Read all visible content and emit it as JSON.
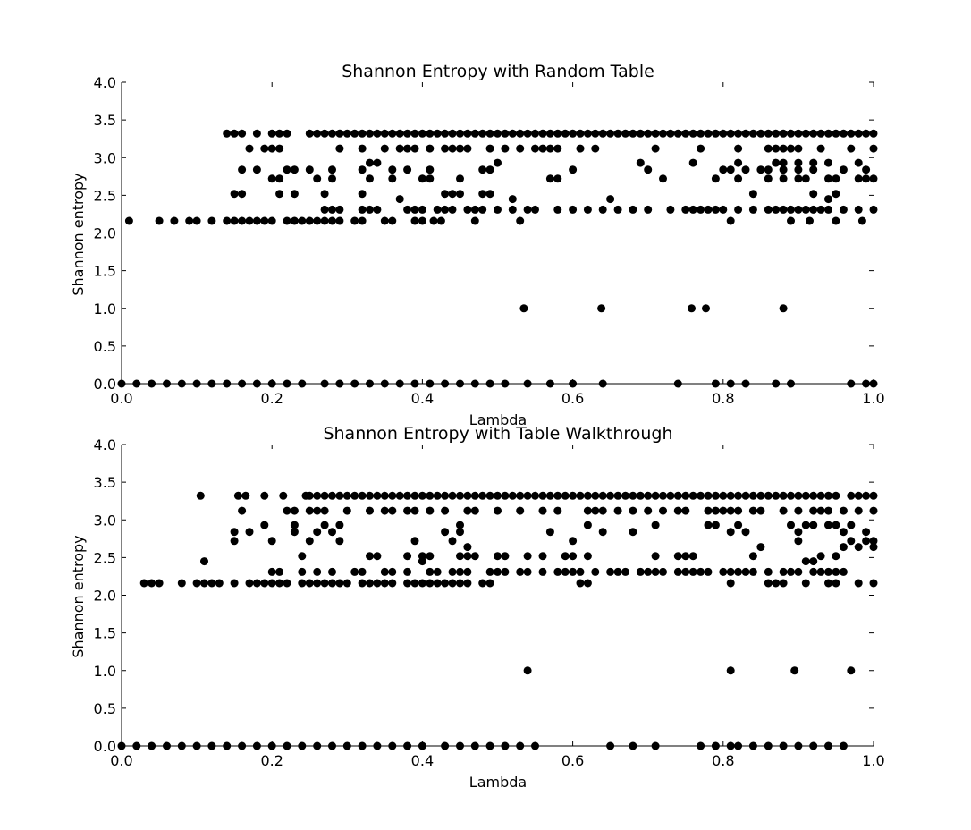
{
  "chart_data": [
    {
      "type": "scatter",
      "title": "Shannon Entropy with Random Table",
      "xlabel": "Lambda",
      "ylabel": "Shannon entropy",
      "xlim": [
        0.0,
        1.0
      ],
      "ylim": [
        0.0,
        4.0
      ],
      "xticks": [
        "0.0",
        "0.2",
        "0.4",
        "0.6",
        "0.8",
        "1.0"
      ],
      "yticks": [
        "0.0",
        "0.5",
        "1.0",
        "1.5",
        "2.0",
        "2.5",
        "3.0",
        "3.5",
        "4.0"
      ],
      "grid": false,
      "marker_color": "#000000",
      "series": [
        {
          "points": [
            {
              "y": 0.0,
              "x": [
                0.0,
                0.02,
                0.04,
                0.06,
                0.08,
                0.1,
                0.12,
                0.14,
                0.16,
                0.18,
                0.2,
                0.22,
                0.24,
                0.27,
                0.29,
                0.31,
                0.33,
                0.35,
                0.37,
                0.39,
                0.41,
                0.43,
                0.45,
                0.47,
                0.49,
                0.51,
                0.54,
                0.57,
                0.6,
                0.64,
                0.74,
                0.79,
                0.81,
                0.83,
                0.87,
                0.89,
                0.97,
                0.99,
                1.0
              ]
            },
            {
              "y": 1.0,
              "x": [
                0.535,
                0.638,
                0.758,
                0.777,
                0.88
              ]
            },
            {
              "y": 2.16,
              "x": [
                0.01,
                0.05,
                0.07,
                0.09,
                0.1,
                0.12,
                0.14,
                0.15,
                0.16,
                0.17,
                0.18,
                0.19,
                0.2,
                0.22,
                0.23,
                0.24,
                0.25,
                0.26,
                0.27,
                0.28,
                0.29,
                0.31,
                0.32,
                0.35,
                0.36,
                0.39,
                0.4,
                0.415,
                0.425,
                0.47,
                0.53,
                0.81,
                0.89,
                0.915,
                0.95,
                0.985
              ]
            },
            {
              "y": 2.31,
              "x": [
                0.27,
                0.28,
                0.29,
                0.32,
                0.33,
                0.34,
                0.38,
                0.39,
                0.4,
                0.42,
                0.43,
                0.44,
                0.46,
                0.47,
                0.48,
                0.5,
                0.52,
                0.54,
                0.55,
                0.58,
                0.6,
                0.62,
                0.64,
                0.66,
                0.68,
                0.7,
                0.73,
                0.75,
                0.76,
                0.77,
                0.78,
                0.79,
                0.8,
                0.82,
                0.84,
                0.86,
                0.87,
                0.88,
                0.89,
                0.9,
                0.91,
                0.92,
                0.93,
                0.94,
                0.96,
                0.98,
                1.0
              ]
            },
            {
              "y": 2.45,
              "x": [
                0.37,
                0.52,
                0.65,
                0.94
              ]
            },
            {
              "y": 2.52,
              "x": [
                0.15,
                0.16,
                0.21,
                0.23,
                0.27,
                0.32,
                0.43,
                0.44,
                0.45,
                0.48,
                0.49,
                0.84,
                0.92,
                0.95
              ]
            },
            {
              "y": 2.72,
              "x": [
                0.2,
                0.21,
                0.26,
                0.28,
                0.33,
                0.36,
                0.4,
                0.41,
                0.45,
                0.57,
                0.58,
                0.72,
                0.79,
                0.82,
                0.86,
                0.88,
                0.9,
                0.91,
                0.94,
                0.95,
                0.98,
                0.99,
                1.0
              ]
            },
            {
              "y": 2.84,
              "x": [
                0.16,
                0.18,
                0.22,
                0.23,
                0.25,
                0.28,
                0.32,
                0.36,
                0.38,
                0.41,
                0.48,
                0.49,
                0.6,
                0.7,
                0.8,
                0.81,
                0.83,
                0.85,
                0.86,
                0.88,
                0.9,
                0.92,
                0.96,
                0.99
              ]
            },
            {
              "y": 2.93,
              "x": [
                0.33,
                0.34,
                0.5,
                0.69,
                0.76,
                0.82,
                0.87,
                0.88,
                0.9,
                0.92,
                0.94,
                0.98
              ]
            },
            {
              "y": 3.12,
              "x": [
                0.17,
                0.19,
                0.2,
                0.21,
                0.29,
                0.32,
                0.35,
                0.37,
                0.38,
                0.39,
                0.41,
                0.43,
                0.44,
                0.45,
                0.46,
                0.49,
                0.51,
                0.53,
                0.55,
                0.56,
                0.57,
                0.58,
                0.61,
                0.63,
                0.71,
                0.77,
                0.82,
                0.86,
                0.87,
                0.88,
                0.89,
                0.9,
                0.93,
                0.97,
                1.0
              ]
            },
            {
              "y": 3.32,
              "x": [
                0.14,
                0.15,
                0.16,
                0.18,
                0.2,
                0.21,
                0.22,
                0.25,
                0.26,
                0.27,
                0.28,
                0.29,
                0.3,
                0.31,
                0.32,
                0.33,
                0.34,
                0.35,
                0.36,
                0.37,
                0.38,
                0.39,
                0.4,
                0.41,
                0.42,
                0.43,
                0.44,
                0.45,
                0.46,
                0.47,
                0.48,
                0.49,
                0.5,
                0.51,
                0.52,
                0.53,
                0.54,
                0.55,
                0.56,
                0.57,
                0.58,
                0.59,
                0.6,
                0.61,
                0.62,
                0.63,
                0.64,
                0.65,
                0.66,
                0.67,
                0.68,
                0.69,
                0.7,
                0.71,
                0.72,
                0.73,
                0.74,
                0.75,
                0.76,
                0.77,
                0.78,
                0.79,
                0.8,
                0.81,
                0.82,
                0.83,
                0.84,
                0.85,
                0.86,
                0.87,
                0.88,
                0.89,
                0.9,
                0.91,
                0.92,
                0.93,
                0.94,
                0.95,
                0.96,
                0.97,
                0.98,
                0.99,
                1.0
              ]
            }
          ]
        }
      ]
    },
    {
      "type": "scatter",
      "title": "Shannon Entropy with Table Walkthrough",
      "xlabel": "Lambda",
      "ylabel": "Shannon entropy",
      "xlim": [
        0.0,
        1.0
      ],
      "ylim": [
        0.0,
        4.0
      ],
      "xticks": [
        "0.0",
        "0.2",
        "0.4",
        "0.6",
        "0.8",
        "1.0"
      ],
      "yticks": [
        "0.0",
        "0.5",
        "1.0",
        "1.5",
        "2.0",
        "2.5",
        "3.0",
        "3.5",
        "4.0"
      ],
      "grid": false,
      "marker_color": "#000000",
      "series": [
        {
          "points": [
            {
              "y": 0.0,
              "x": [
                0.0,
                0.02,
                0.04,
                0.06,
                0.08,
                0.1,
                0.12,
                0.14,
                0.16,
                0.18,
                0.2,
                0.22,
                0.24,
                0.26,
                0.28,
                0.3,
                0.32,
                0.34,
                0.36,
                0.38,
                0.4,
                0.43,
                0.45,
                0.47,
                0.49,
                0.51,
                0.53,
                0.55,
                0.65,
                0.68,
                0.71,
                0.77,
                0.79,
                0.81,
                0.82,
                0.84,
                0.86,
                0.88,
                0.9,
                0.92,
                0.94,
                0.96
              ]
            },
            {
              "y": 1.0,
              "x": [
                0.54,
                0.81,
                0.895,
                0.97
              ]
            },
            {
              "y": 2.16,
              "x": [
                0.03,
                0.04,
                0.05,
                0.08,
                0.1,
                0.11,
                0.12,
                0.13,
                0.15,
                0.17,
                0.18,
                0.19,
                0.2,
                0.21,
                0.22,
                0.24,
                0.25,
                0.26,
                0.27,
                0.28,
                0.29,
                0.3,
                0.32,
                0.33,
                0.34,
                0.35,
                0.36,
                0.38,
                0.39,
                0.4,
                0.41,
                0.42,
                0.43,
                0.44,
                0.45,
                0.46,
                0.48,
                0.49,
                0.61,
                0.62,
                0.81,
                0.86,
                0.87,
                0.88,
                0.91,
                0.94,
                0.95,
                0.98,
                1.0
              ]
            },
            {
              "y": 2.31,
              "x": [
                0.2,
                0.21,
                0.24,
                0.26,
                0.28,
                0.31,
                0.32,
                0.35,
                0.36,
                0.38,
                0.41,
                0.42,
                0.44,
                0.45,
                0.46,
                0.49,
                0.5,
                0.51,
                0.53,
                0.54,
                0.56,
                0.58,
                0.59,
                0.6,
                0.61,
                0.63,
                0.65,
                0.66,
                0.67,
                0.69,
                0.7,
                0.71,
                0.72,
                0.74,
                0.75,
                0.76,
                0.77,
                0.78,
                0.8,
                0.81,
                0.82,
                0.83,
                0.84,
                0.86,
                0.88,
                0.89,
                0.9,
                0.92,
                0.93,
                0.94,
                0.95,
                0.96
              ]
            },
            {
              "y": 2.45,
              "x": [
                0.11,
                0.4,
                0.91,
                0.92
              ]
            },
            {
              "y": 2.52,
              "x": [
                0.24,
                0.33,
                0.34,
                0.38,
                0.4,
                0.41,
                0.45,
                0.46,
                0.47,
                0.5,
                0.51,
                0.54,
                0.56,
                0.59,
                0.6,
                0.62,
                0.71,
                0.74,
                0.75,
                0.76,
                0.84,
                0.93,
                0.95
              ]
            },
            {
              "y": 2.64,
              "x": [
                0.46,
                0.85,
                0.96,
                0.98,
                1.0
              ]
            },
            {
              "y": 2.72,
              "x": [
                0.15,
                0.2,
                0.25,
                0.29,
                0.39,
                0.44,
                0.6,
                0.9,
                0.97,
                0.99,
                1.0
              ]
            },
            {
              "y": 2.84,
              "x": [
                0.15,
                0.17,
                0.23,
                0.26,
                0.28,
                0.43,
                0.45,
                0.57,
                0.64,
                0.68,
                0.81,
                0.83,
                0.9,
                0.96,
                0.99
              ]
            },
            {
              "y": 2.93,
              "x": [
                0.19,
                0.23,
                0.27,
                0.29,
                0.45,
                0.62,
                0.71,
                0.78,
                0.79,
                0.82,
                0.89,
                0.91,
                0.92,
                0.94,
                0.95,
                0.97
              ]
            },
            {
              "y": 3.12,
              "x": [
                0.16,
                0.22,
                0.23,
                0.25,
                0.26,
                0.27,
                0.3,
                0.33,
                0.35,
                0.36,
                0.38,
                0.39,
                0.41,
                0.43,
                0.46,
                0.47,
                0.5,
                0.53,
                0.56,
                0.58,
                0.62,
                0.63,
                0.64,
                0.66,
                0.68,
                0.7,
                0.72,
                0.74,
                0.75,
                0.78,
                0.79,
                0.8,
                0.81,
                0.82,
                0.84,
                0.85,
                0.88,
                0.9,
                0.92,
                0.93,
                0.94,
                0.96,
                0.98,
                1.0
              ]
            },
            {
              "y": 3.32,
              "x": [
                0.105,
                0.155,
                0.165,
                0.19,
                0.215,
                0.245,
                0.25,
                0.26,
                0.27,
                0.28,
                0.29,
                0.3,
                0.31,
                0.32,
                0.33,
                0.34,
                0.35,
                0.36,
                0.37,
                0.38,
                0.39,
                0.4,
                0.41,
                0.42,
                0.43,
                0.44,
                0.45,
                0.46,
                0.47,
                0.48,
                0.49,
                0.5,
                0.51,
                0.52,
                0.53,
                0.54,
                0.55,
                0.56,
                0.57,
                0.58,
                0.59,
                0.6,
                0.61,
                0.62,
                0.63,
                0.64,
                0.65,
                0.66,
                0.67,
                0.68,
                0.69,
                0.7,
                0.71,
                0.72,
                0.73,
                0.74,
                0.75,
                0.76,
                0.77,
                0.78,
                0.79,
                0.8,
                0.81,
                0.82,
                0.83,
                0.84,
                0.85,
                0.86,
                0.87,
                0.88,
                0.89,
                0.9,
                0.91,
                0.92,
                0.93,
                0.94,
                0.95,
                0.97,
                0.98,
                0.99,
                1.0
              ]
            }
          ]
        }
      ]
    }
  ]
}
